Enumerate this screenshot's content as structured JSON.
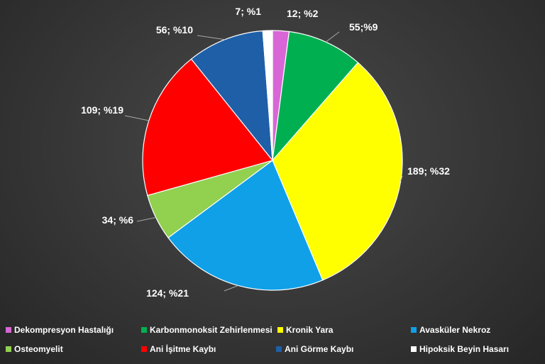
{
  "chart_data": {
    "type": "pie",
    "title": "",
    "slices": [
      {
        "name": "Dekompresyon Hastalığı",
        "value": 12,
        "label": "12; %2",
        "color": "#d966d6"
      },
      {
        "name": "Karbonmonoksit Zehirlenmesi",
        "value": 55,
        "label": "55;%9",
        "color": "#00b050"
      },
      {
        "name": "Kronik Yara",
        "value": 189,
        "label": "189; %32",
        "color": "#ffff00"
      },
      {
        "name": "Avasküler Nekroz",
        "value": 124,
        "label": "124; %21",
        "color": "#0fa0e8"
      },
      {
        "name": "Osteomyelit",
        "value": 34,
        "label": "34; %6",
        "color": "#92d050"
      },
      {
        "name": "Ani İşitme Kaybı",
        "value": 109,
        "label": "109; %19",
        "color": "#ff0000"
      },
      {
        "name": "Ani Görme Kaybı",
        "value": 56,
        "label": "56; %10",
        "color": "#1f5fa8"
      },
      {
        "name": "Hipoksik Beyin Hasarı",
        "value": 7,
        "label": "7; %1",
        "color": "#ffffff"
      }
    ],
    "legend_position": "bottom"
  }
}
